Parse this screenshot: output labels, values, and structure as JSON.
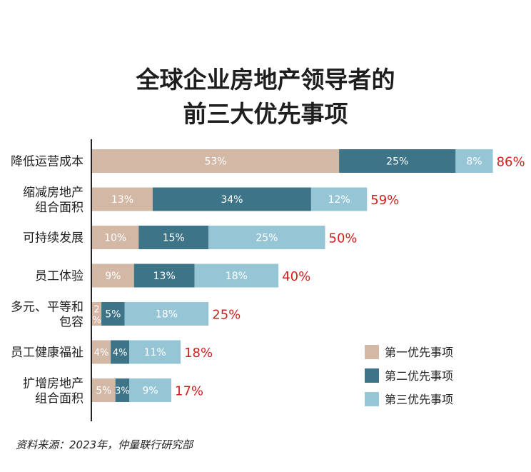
{
  "title_lines": [
    "全球企业房地产领导者的",
    "前三大优先事项"
  ],
  "source": "资料来源：2023年，仲量联行研究部",
  "colors": {
    "first": "#d3b8a6",
    "second": "#3d7487",
    "third": "#96c6d6",
    "total": "#d0201e",
    "axis": "#222222",
    "text": "#222222"
  },
  "chart_data": {
    "type": "bar",
    "orientation": "horizontal",
    "stacked": true,
    "categories": [
      [
        "降低运营成本"
      ],
      [
        "缩减房地产",
        "组合面积"
      ],
      [
        "可持续发展"
      ],
      [
        "员工体验"
      ],
      [
        "多元、平等和",
        "包容"
      ],
      [
        "员工健康福祉"
      ],
      [
        "扩增房地产",
        "组合面积"
      ]
    ],
    "series": [
      {
        "name": "第一优先事项",
        "values": [
          53,
          13,
          10,
          9,
          2,
          4,
          5
        ],
        "labels": [
          "53%",
          "13%",
          "10%",
          "9%",
          "2%",
          "4%",
          "5%"
        ]
      },
      {
        "name": "第二优先事项",
        "values": [
          25,
          34,
          15,
          13,
          5,
          4,
          3
        ],
        "labels": [
          "25%",
          "34%",
          "15%",
          "13%",
          "5%",
          "4%",
          "3%"
        ]
      },
      {
        "name": "第三优先事项",
        "values": [
          8,
          12,
          25,
          18,
          18,
          11,
          9
        ],
        "labels": [
          "8%",
          "12%",
          "25%",
          "18%",
          "18%",
          "11%",
          "9%"
        ]
      }
    ],
    "totals": [
      "86%",
      "59%",
      "50%",
      "40%",
      "25%",
      "18%",
      "17%"
    ],
    "legend_position": "bottom-right",
    "grid": false
  }
}
